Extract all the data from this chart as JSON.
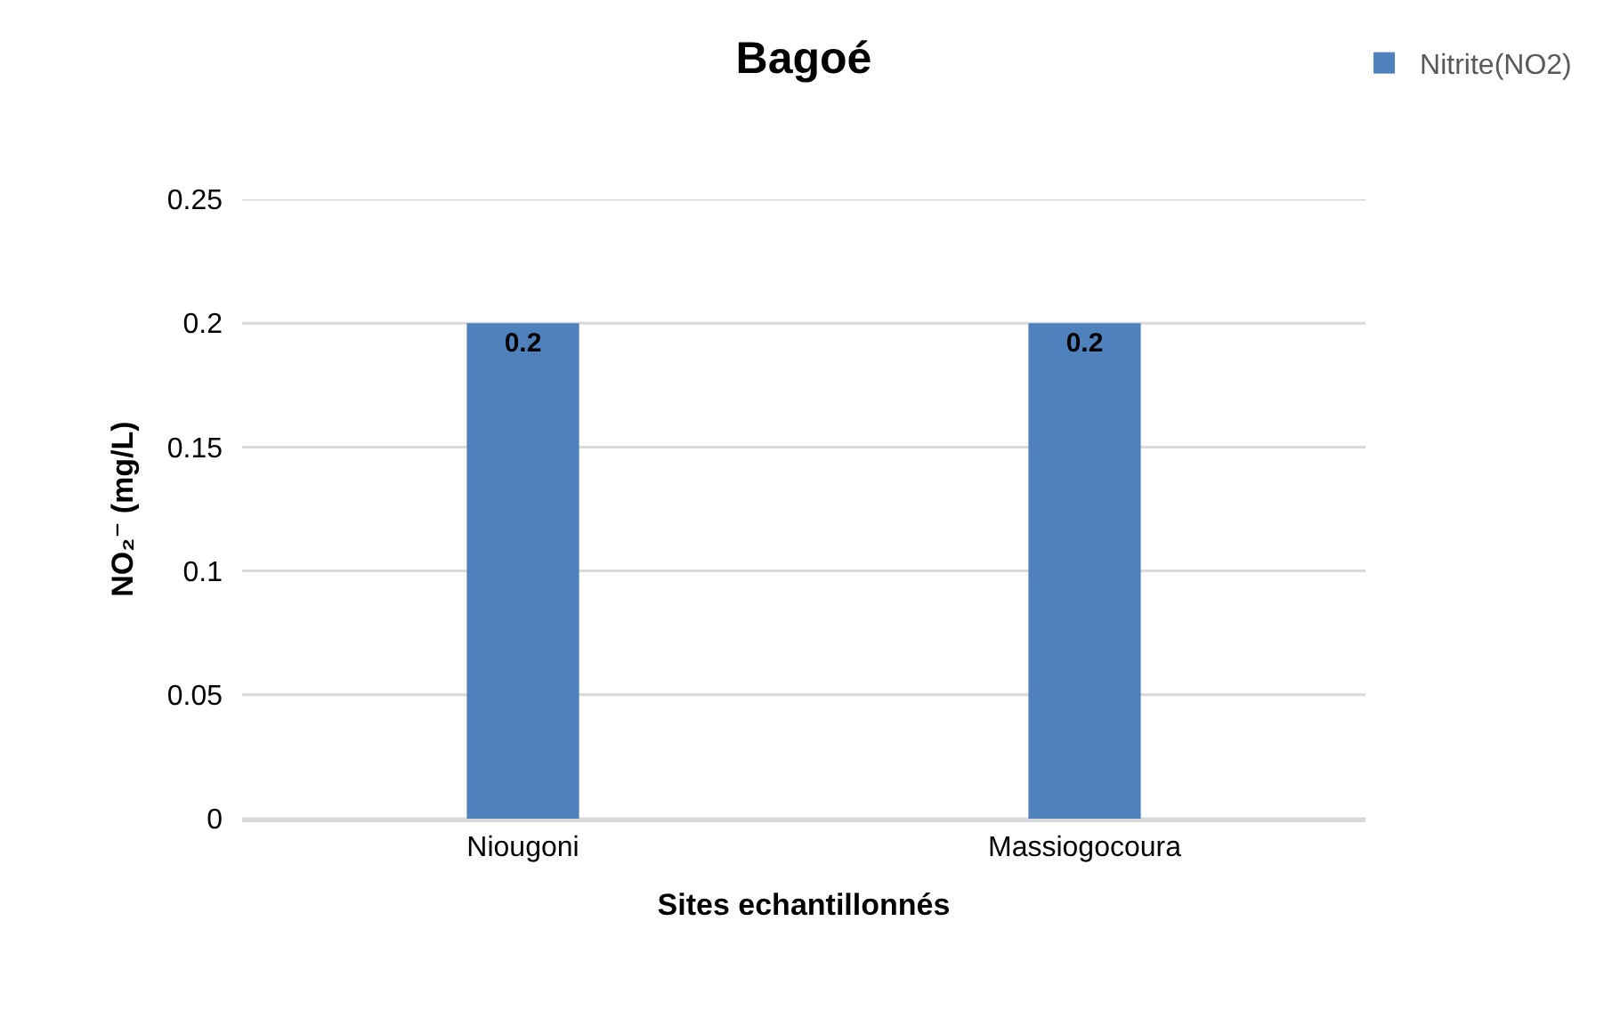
{
  "chart_data": {
    "type": "bar",
    "title": "Bagoé",
    "xlabel": "Sites echantillonnés",
    "ylabel": "NO₂⁻ (mg/L)",
    "categories": [
      "Niougoni",
      "Massiogocoura"
    ],
    "series": [
      {
        "name": "Nitrite(NO2)",
        "color": "#4f81bd",
        "values": [
          0.2,
          0.2
        ]
      }
    ],
    "ylim": [
      0,
      0.25
    ],
    "yticks": [
      0,
      0.05,
      0.1,
      0.15,
      0.2,
      0.25
    ],
    "grid": "y",
    "legend": "top right",
    "data_labels": true
  }
}
